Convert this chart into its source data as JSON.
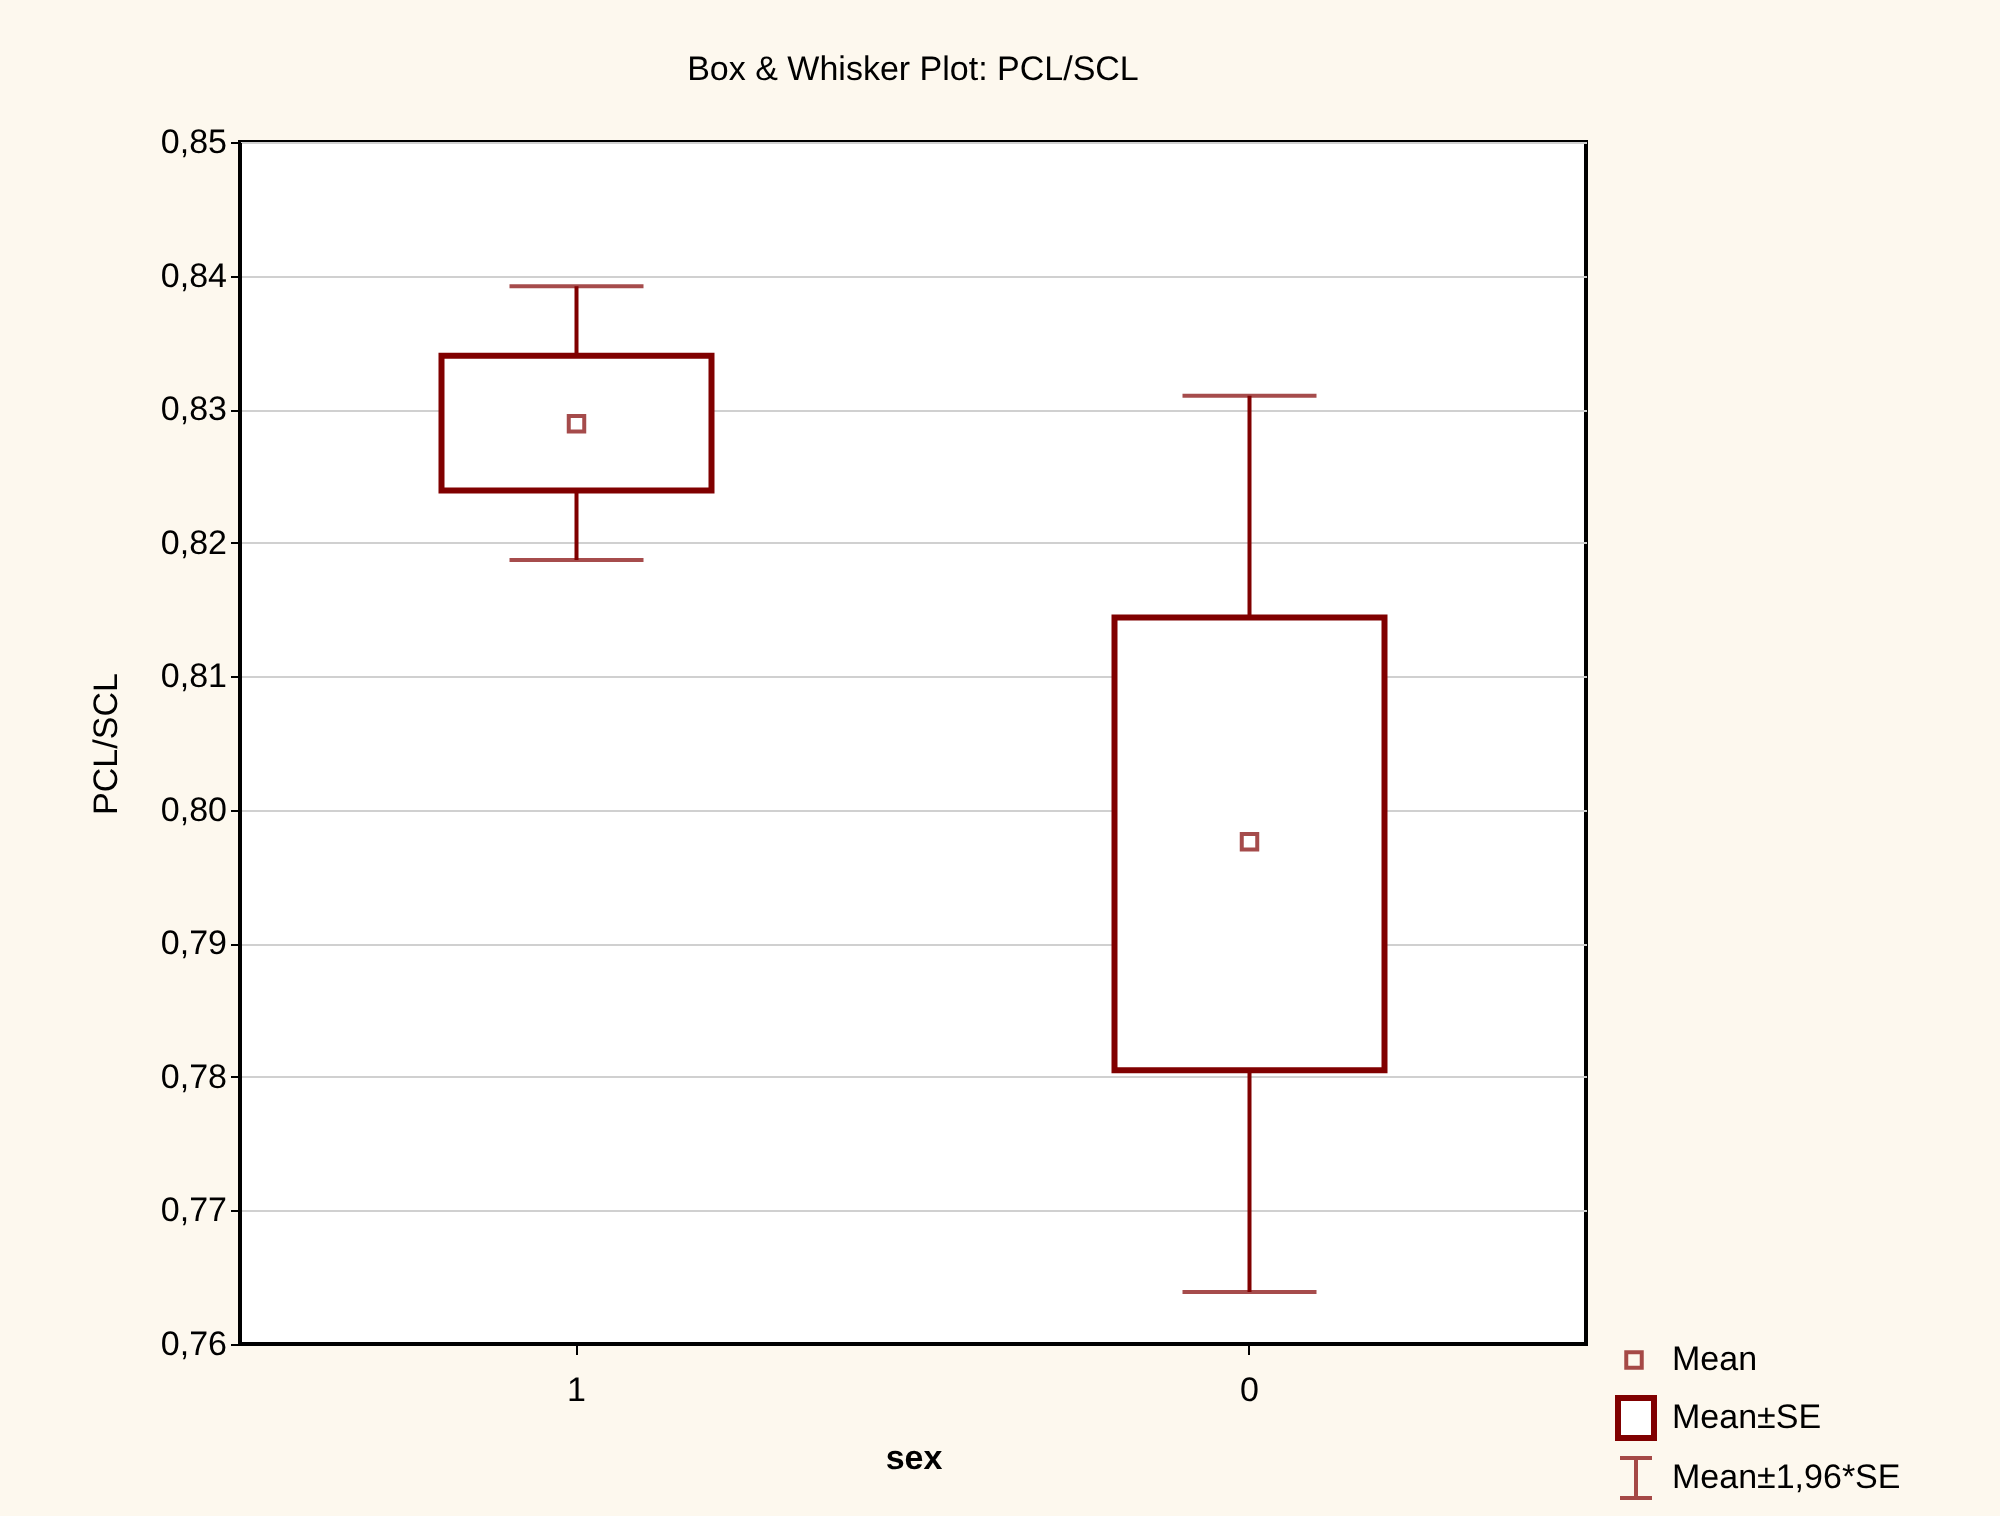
{
  "chart_data": {
    "type": "box",
    "title": "Box & Whisker Plot: PCL/SCL",
    "xlabel": "sex",
    "ylabel": "PCL/SCL",
    "categories": [
      "1",
      "0"
    ],
    "series": [
      {
        "color": "#800000",
        "boxes": [
          {
            "low": 0.8187,
            "q1": 0.8239,
            "q3": 0.834,
            "high": 0.8392,
            "mean": 0.8289
          },
          {
            "low": 0.7639,
            "q1": 0.7805,
            "q3": 0.8144,
            "high": 0.831,
            "mean": 0.7976
          }
        ]
      }
    ],
    "ylim": [
      0.76,
      0.85
    ],
    "yticks": [
      {
        "value": 0.76,
        "label": "0,76"
      },
      {
        "value": 0.77,
        "label": "0,77"
      },
      {
        "value": 0.78,
        "label": "0,78"
      },
      {
        "value": 0.79,
        "label": "0,79"
      },
      {
        "value": 0.8,
        "label": "0,80"
      },
      {
        "value": 0.81,
        "label": "0,81"
      },
      {
        "value": 0.82,
        "label": "0,82"
      },
      {
        "value": 0.83,
        "label": "0,83"
      },
      {
        "value": 0.84,
        "label": "0,84"
      },
      {
        "value": 0.85,
        "label": "0,85"
      }
    ],
    "grid": "y",
    "annotations": [
      "Mean",
      "Mean±SE",
      "Mean±1,96*SE"
    ]
  }
}
